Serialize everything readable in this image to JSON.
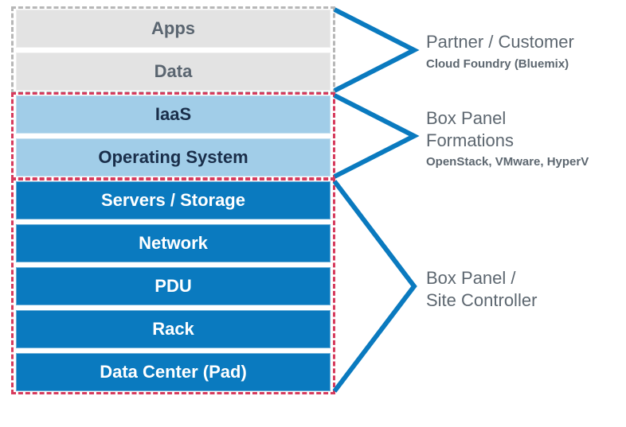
{
  "layers": [
    {
      "label": "Apps",
      "bg": "#e3e3e3",
      "fg": "#5a6570"
    },
    {
      "label": "Data",
      "bg": "#e3e3e3",
      "fg": "#5a6570"
    },
    {
      "label": "IaaS",
      "bg": "#a1cde8",
      "fg": "#1a2e4a"
    },
    {
      "label": "Operating System",
      "bg": "#a1cde8",
      "fg": "#1a2e4a"
    },
    {
      "label": "Servers / Storage",
      "bg": "#0a7abf",
      "fg": "#ffffff"
    },
    {
      "label": "Network",
      "bg": "#0a7abf",
      "fg": "#ffffff"
    },
    {
      "label": "PDU",
      "bg": "#0a7abf",
      "fg": "#ffffff"
    },
    {
      "label": "Rack",
      "bg": "#0a7abf",
      "fg": "#ffffff"
    },
    {
      "label": "Data Center (Pad)",
      "bg": "#0a7abf",
      "fg": "#ffffff"
    }
  ],
  "groups": [
    {
      "topIndex": 0,
      "bottomIndex": 1,
      "color": "#b7b7b7"
    },
    {
      "topIndex": 2,
      "bottomIndex": 3,
      "color": "#d63b5d"
    },
    {
      "topIndex": 4,
      "bottomIndex": 8,
      "color": "#d63b5d"
    }
  ],
  "annotations": [
    {
      "title": "Partner / Customer",
      "sub": "Cloud Foundry (Bluemix)",
      "bracketTopIndex": 0,
      "bracketBottomIndex": 1
    },
    {
      "title": "Box Panel\nFormations",
      "sub": "OpenStack, VMware, HyperV",
      "bracketTopIndex": 2,
      "bracketBottomIndex": 3
    },
    {
      "title": "Box Panel /\nSite Controller",
      "sub": "",
      "bracketTopIndex": 4,
      "bracketBottomIndex": 8
    }
  ],
  "style": {
    "layerHeight": 48,
    "layerGap": 6,
    "stackTop": 12,
    "stackLeft": 20,
    "stackWidth": 395,
    "bracketColor": "#0a7abf",
    "bracketStroke": 6,
    "bracketStartX": 420,
    "bracketTipX": 520,
    "dashBorderWidth": 3,
    "layerFontSize": 22,
    "annoTitleFontSize": 22,
    "annoSubFontSize": 15,
    "background": "#ffffff"
  }
}
